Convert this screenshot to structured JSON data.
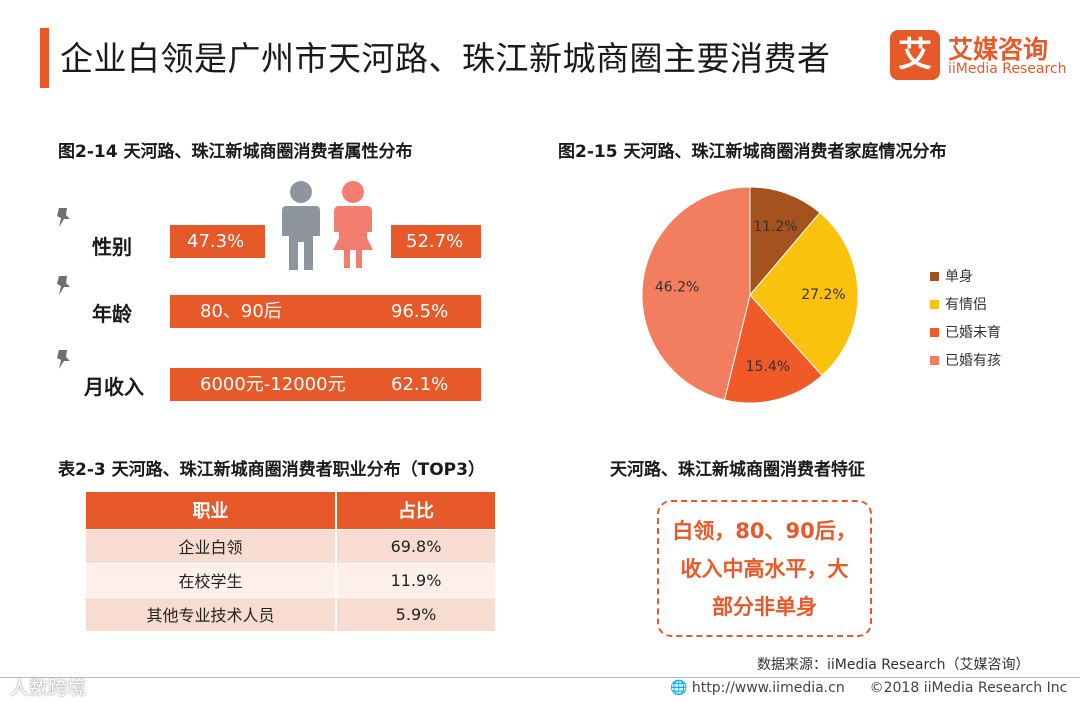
{
  "header": {
    "title": "企业白领是广州市天河路、珠江新城商圈主要消费者",
    "brand_mark": "艾",
    "brand_cn": "艾媒咨询",
    "brand_en": "iiMedia Research",
    "accent_color": "#e8592a"
  },
  "attributes": {
    "title": "图2-14 天河路、珠江新城商圈消费者属性分布",
    "rows": [
      {
        "label": "性别",
        "left": "47.3%",
        "right": "52.7%",
        "icon": "pin-icon"
      },
      {
        "label": "年龄",
        "left": "80、90后",
        "right": "96.5%",
        "icon": "pin-icon"
      },
      {
        "label": "月收入",
        "left": "6000元-12000元",
        "right": "62.1%",
        "icon": "pin-icon"
      }
    ],
    "gender_icons": [
      "male-figure-icon",
      "female-figure-icon"
    ]
  },
  "pie": {
    "title": "图2-15 天河路、珠江新城商圈消费者家庭情况分布"
  },
  "chart_data": {
    "type": "pie",
    "title": "图2-15 天河路、珠江新城商圈消费者家庭情况分布",
    "categories": [
      "单身",
      "有情侣",
      "已婚未育",
      "已婚有孩"
    ],
    "values": [
      11.2,
      27.2,
      15.4,
      46.2
    ],
    "labels": [
      "11.2%",
      "27.2%",
      "15.4%",
      "46.2%"
    ],
    "colors": [
      "#a5521f",
      "#fbc20d",
      "#f05a28",
      "#f37e5f"
    ],
    "legend": "right"
  },
  "table": {
    "title": "表2-3 天河路、珠江新城商圈消费者职业分布（TOP3）",
    "headers": [
      "职业",
      "占比"
    ],
    "rows": [
      {
        "occupation": "企业白领",
        "share": "69.8%"
      },
      {
        "occupation": "在校学生",
        "share": "11.9%"
      },
      {
        "occupation": "其他专业技术人员",
        "share": "5.9%"
      }
    ]
  },
  "features": {
    "title": "天河路、珠江新城商圈消费者特征",
    "lines": [
      "白领，80、90后，",
      "收入中高水平，大",
      "部分非单身"
    ]
  },
  "footer": {
    "source": "数据来源：iiMedia Research（艾媒咨询）",
    "url": "http://www.iimedia.cn",
    "copyright": "©2018  iiMedia Research  Inc",
    "watermark": "人数跨境"
  }
}
